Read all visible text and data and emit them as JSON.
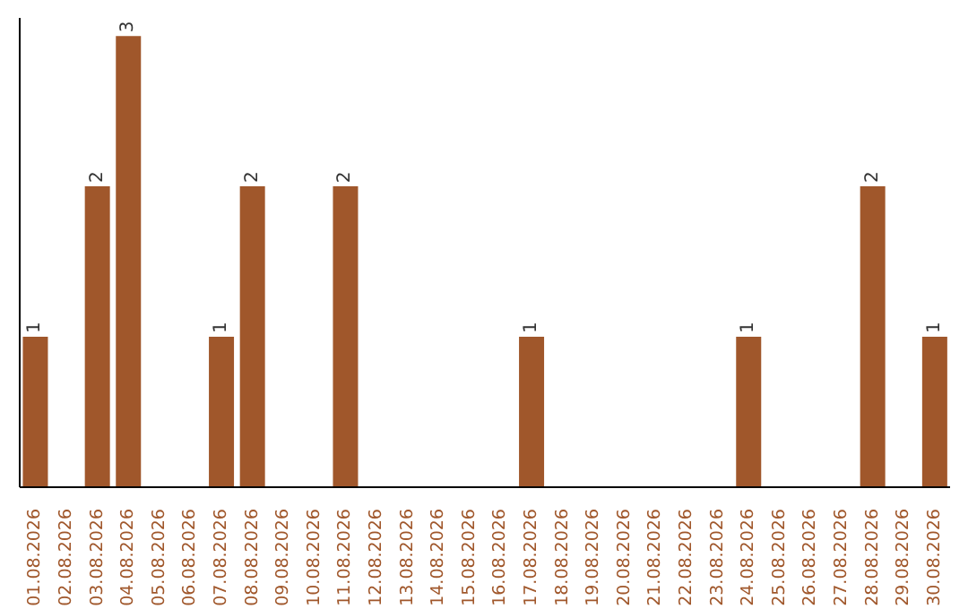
{
  "chart_data": {
    "type": "bar",
    "categories": [
      "01.08.2026",
      "02.08.2026",
      "03.08.2026",
      "04.08.2026",
      "05.08.2026",
      "06.08.2026",
      "07.08.2026",
      "08.08.2026",
      "09.08.2026",
      "10.08.2026",
      "11.08.2026",
      "12.08.2026",
      "13.08.2026",
      "14.08.2026",
      "15.08.2026",
      "16.08.2026",
      "17.08.2026",
      "18.08.2026",
      "19.08.2026",
      "20.08.2026",
      "21.08.2026",
      "22.08.2026",
      "23.08.2026",
      "24.08.2026",
      "25.08.2026",
      "26.08.2026",
      "27.08.2026",
      "28.08.2026",
      "29.08.2026",
      "30.08.2026"
    ],
    "values": [
      1,
      0,
      2,
      3,
      0,
      0,
      1,
      2,
      0,
      0,
      2,
      0,
      0,
      0,
      0,
      0,
      1,
      0,
      0,
      0,
      0,
      0,
      0,
      1,
      0,
      0,
      0,
      2,
      0,
      1
    ],
    "value_labels": [
      "1",
      null,
      "2",
      "3",
      null,
      null,
      "1",
      "2",
      null,
      null,
      "2",
      null,
      null,
      null,
      null,
      null,
      "1",
      null,
      null,
      null,
      null,
      null,
      null,
      "1",
      null,
      null,
      null,
      "2",
      null,
      "1"
    ],
    "color": "#a0572b",
    "tick_labels": "x",
    "grid": false,
    "legend": false
  }
}
